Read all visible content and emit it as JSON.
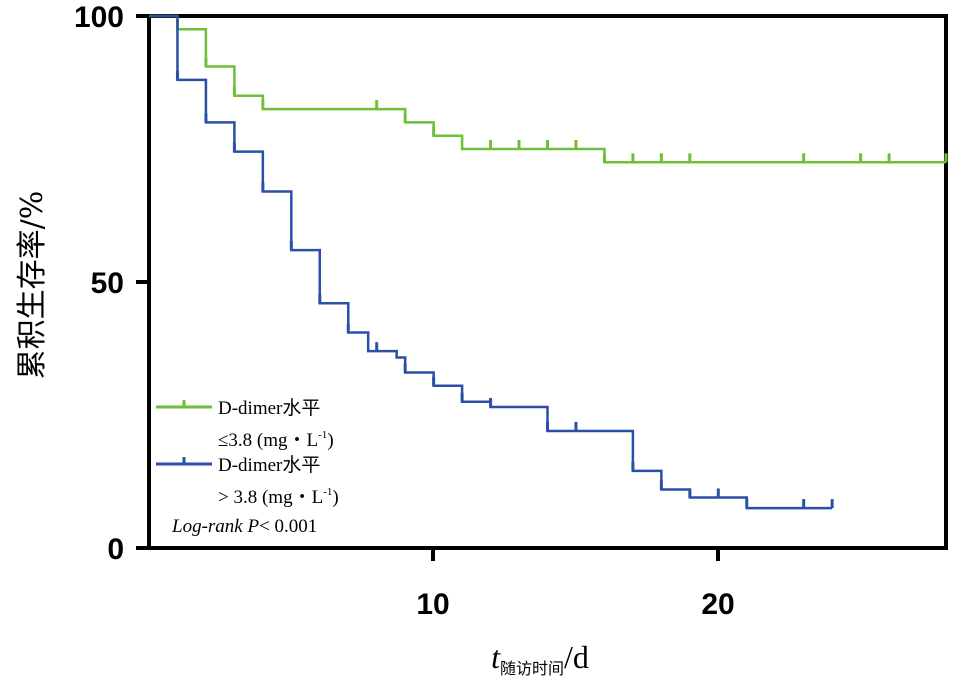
{
  "chart_data": {
    "type": "line",
    "subtype": "kaplan-meier-step",
    "ylabel": "累积生存率/%",
    "xlabel": {
      "var": "t",
      "sub": "随访时间",
      "unit": "/d"
    },
    "xlim": [
      0,
      28
    ],
    "ylim": [
      0,
      100
    ],
    "xticks": [
      10,
      20
    ],
    "yticks": [
      0,
      50,
      100
    ],
    "grid": false,
    "legend_placement": "bottom-left",
    "series": [
      {
        "name": "D-dimer水平 ≤3.8 (mg・L-1)",
        "label_line1": "D-dimer水平",
        "label_line2": "≤3.8 (mg・L",
        "label_sup": "-1",
        "label_close": ")",
        "color": "#6fbf3a",
        "steps": [
          [
            0,
            100
          ],
          [
            1,
            97.5
          ],
          [
            2,
            90.5
          ],
          [
            3,
            85
          ],
          [
            4,
            82.5
          ],
          [
            9,
            80
          ],
          [
            10,
            77.5
          ],
          [
            11,
            75
          ],
          [
            16,
            72.5
          ],
          [
            28,
            72.5
          ]
        ],
        "censored": [
          [
            1,
            97.5
          ],
          [
            2,
            90.5
          ],
          [
            3,
            85
          ],
          [
            4,
            82.5
          ],
          [
            8,
            82.5
          ],
          [
            9,
            80
          ],
          [
            10,
            77.5
          ],
          [
            12,
            75
          ],
          [
            13,
            75
          ],
          [
            14,
            75
          ],
          [
            15,
            75
          ],
          [
            16,
            72.5
          ],
          [
            17,
            72.5
          ],
          [
            18,
            72.5
          ],
          [
            19,
            72.5
          ],
          [
            23,
            72.5
          ],
          [
            25,
            72.5
          ],
          [
            26,
            72.5
          ],
          [
            28,
            72.5
          ]
        ]
      },
      {
        "name": "D-dimer水平 >3.8 (mg・L-1)",
        "label_line1": "D-dimer水平",
        "label_line2": "> 3.8 (mg・L",
        "label_sup": "-1",
        "label_close": ")",
        "color": "#2a4fa6",
        "steps": [
          [
            0,
            100
          ],
          [
            1,
            88
          ],
          [
            2,
            80
          ],
          [
            3,
            74.5
          ],
          [
            4,
            67
          ],
          [
            5,
            56
          ],
          [
            6,
            46
          ],
          [
            7,
            40.5
          ],
          [
            7.7,
            37
          ],
          [
            8,
            37
          ],
          [
            8.7,
            35.8
          ],
          [
            9,
            33
          ],
          [
            10,
            30.5
          ],
          [
            11,
            27.5
          ],
          [
            12,
            26.5
          ],
          [
            14,
            22
          ],
          [
            17,
            14.5
          ],
          [
            18,
            11
          ],
          [
            19,
            9.5
          ],
          [
            21,
            7.5
          ],
          [
            24,
            7.5
          ]
        ],
        "censored": [
          [
            1,
            88
          ],
          [
            2,
            80
          ],
          [
            3,
            74.5
          ],
          [
            4,
            67
          ],
          [
            5,
            56
          ],
          [
            6,
            46
          ],
          [
            7,
            40.5
          ],
          [
            8,
            37
          ],
          [
            9,
            33
          ],
          [
            10,
            30.5
          ],
          [
            11,
            27.5
          ],
          [
            12,
            26.5
          ],
          [
            14,
            22
          ],
          [
            15,
            22
          ],
          [
            17,
            14.5
          ],
          [
            18,
            11
          ],
          [
            19,
            9.5
          ],
          [
            20,
            9.5
          ],
          [
            21,
            7.5
          ],
          [
            23,
            7.5
          ],
          [
            24,
            7.5
          ]
        ]
      }
    ],
    "annotation": {
      "prefix": "Log-rank ",
      "p": "P",
      "rest": "< 0.001"
    }
  }
}
